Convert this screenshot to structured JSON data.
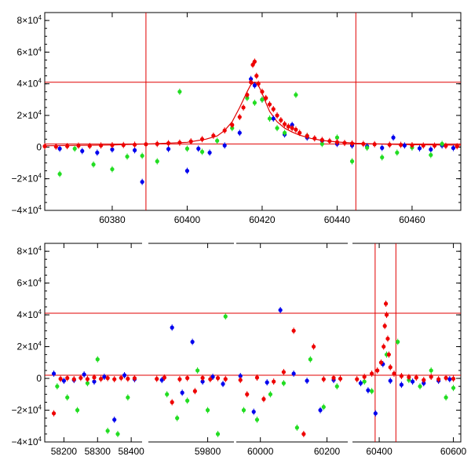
{
  "chart_data": [
    {
      "type": "scatter",
      "title": "",
      "xlabel": "",
      "ylabel": "",
      "xlim": [
        60362,
        60473
      ],
      "ylim": [
        -40000,
        85000
      ],
      "grid": false,
      "x_ticks": [
        60380,
        60400,
        60420,
        60440,
        60460
      ],
      "x_tick_labels": [
        "60380",
        "60400",
        "60420",
        "60440",
        "60460"
      ],
      "y_ticks": [
        -40000,
        -20000,
        0,
        20000,
        40000,
        60000,
        80000
      ],
      "y_tick_labels": [
        {
          "base": "−4×10",
          "exp": "4"
        },
        {
          "base": "−2×10",
          "exp": "4"
        },
        {
          "base": "0",
          "exp": ""
        },
        {
          "base": "2×10",
          "exp": "4"
        },
        {
          "base": "4×10",
          "exp": "4"
        },
        {
          "base": "6×10",
          "exp": "4"
        },
        {
          "base": "8×10",
          "exp": "4"
        }
      ],
      "hlines": [
        41000,
        2000
      ],
      "vlines": [
        60389,
        60445
      ],
      "model_curve": {
        "color": "#e00000",
        "x": [
          60362,
          60380,
          60390,
          60400,
          60405,
          60408,
          60410,
          60412,
          60414,
          60416,
          60417,
          60418,
          60419,
          60420,
          60421,
          60422,
          60424,
          60426,
          60428,
          60430,
          60433,
          60436,
          60440,
          60445,
          60450,
          60460,
          60473
        ],
        "y": [
          800,
          1300,
          2000,
          3000,
          5000,
          7000,
          10500,
          16000,
          25000,
          35000,
          39500,
          41000,
          39000,
          34000,
          28000,
          22500,
          16000,
          12000,
          9500,
          7500,
          5500,
          4200,
          3200,
          2400,
          2000,
          1500,
          1200
        ]
      },
      "series": [
        {
          "color": "#0000ee",
          "x": [
            60366,
            60372,
            60376,
            60380,
            60386,
            60388,
            60395,
            60400,
            60403,
            60406,
            60410,
            60414,
            60417,
            60418,
            60420,
            60423,
            60426,
            60428,
            60432,
            60436,
            60440,
            60444,
            60448,
            60452,
            60455,
            60458,
            60462,
            60465,
            60468,
            60471
          ],
          "y": [
            -1000,
            -2500,
            -3500,
            -1500,
            -2000,
            -22000,
            -1200,
            -15000,
            -1000,
            -3500,
            1000,
            9000,
            43000,
            39000,
            30000,
            18000,
            8000,
            14000,
            6000,
            4000,
            2000,
            1000,
            500,
            -500,
            6000,
            1000,
            -800,
            -1500,
            1000,
            -600
          ]
        },
        {
          "color": "#22dd22",
          "x": [
            60366,
            60370,
            60375,
            60380,
            60384,
            60388,
            60392,
            60398,
            60400,
            60404,
            60408,
            60412,
            60416,
            60418,
            60420,
            60422,
            60424,
            60426,
            60429,
            60432,
            60436,
            60440,
            60444,
            60448,
            60452,
            60456,
            60460,
            60465,
            60468
          ],
          "y": [
            -17000,
            -1000,
            -11000,
            -14000,
            -6000,
            -5500,
            -9000,
            35000,
            -1000,
            -3000,
            4000,
            12000,
            31000,
            28000,
            30000,
            18000,
            12000,
            9000,
            33000,
            7000,
            2000,
            6000,
            -9000,
            -400,
            -6500,
            -3500,
            -300,
            -5000,
            2000
          ]
        },
        {
          "color": "#ee0000",
          "x": [
            60362,
            60365,
            60368,
            60371,
            60374,
            60377,
            60380,
            60383,
            60386,
            60389,
            60392,
            60395,
            60398,
            60401,
            60404,
            60407,
            60410,
            60412,
            60414,
            60415,
            60416,
            60417,
            60417.5,
            60418,
            60418.5,
            60419,
            60420,
            60421,
            60422,
            60423,
            60424,
            60425,
            60426,
            60427,
            60428,
            60429,
            60430,
            60432,
            60434,
            60436,
            60438,
            60440,
            60442,
            60444,
            60447,
            60450,
            60454,
            60457,
            60460,
            60463,
            60466,
            60469,
            60472
          ],
          "y": [
            500,
            300,
            600,
            900,
            700,
            1000,
            1200,
            1300,
            1500,
            1800,
            2000,
            2400,
            2800,
            3600,
            5000,
            7200,
            10500,
            14000,
            19000,
            25000,
            33000,
            41000,
            52000,
            54000,
            45000,
            40000,
            35000,
            31000,
            27000,
            24000,
            20000,
            17000,
            14500,
            13000,
            12000,
            11000,
            9000,
            7000,
            5500,
            4500,
            3800,
            3100,
            2600,
            2300,
            2000,
            1800,
            1500,
            1400,
            1200,
            1000,
            900,
            800,
            500
          ]
        }
      ]
    },
    {
      "type": "scatter",
      "title": "",
      "xlabel": "",
      "ylabel": "",
      "xlim": [
        58150,
        60620
      ],
      "x_breaks": [
        [
          58430,
          59570
        ],
        [
          59900,
          59930
        ],
        [
          60260,
          60330
        ]
      ],
      "ylim": [
        -40000,
        85000
      ],
      "grid": false,
      "x_ticks": [
        58200,
        58300,
        58400,
        59800,
        60000,
        60200,
        60400,
        60600
      ],
      "x_tick_labels": [
        "58200",
        "58300",
        "58400",
        "59800",
        "60000",
        "60200",
        "60400",
        "60600"
      ],
      "y_ticks": [
        -40000,
        -20000,
        0,
        20000,
        40000,
        60000,
        80000
      ],
      "y_tick_labels": [
        {
          "base": "−4×10",
          "exp": "4"
        },
        {
          "base": "−2×10",
          "exp": "4"
        },
        {
          "base": "0",
          "exp": ""
        },
        {
          "base": "2×10",
          "exp": "4"
        },
        {
          "base": "4×10",
          "exp": "4"
        },
        {
          "base": "6×10",
          "exp": "4"
        },
        {
          "base": "8×10",
          "exp": "4"
        }
      ],
      "hlines": [
        41000,
        2000
      ],
      "vlines": [
        60389,
        60445
      ],
      "series": [
        {
          "color": "#0000ee",
          "x": [
            58170,
            58200,
            58230,
            58260,
            58290,
            58320,
            58350,
            58380,
            58410,
            59620,
            59660,
            59700,
            59740,
            59780,
            59820,
            59860,
            59940,
            59980,
            60020,
            60060,
            60100,
            60140,
            60180,
            60220,
            60350,
            60370,
            60390,
            60410,
            60430,
            60460,
            60490,
            60520,
            60560,
            60590
          ],
          "y": [
            3000,
            -1500,
            -1000,
            2500,
            -2000,
            1000,
            -26000,
            2000,
            -500,
            -1000,
            32000,
            -9000,
            23000,
            -2000,
            1000,
            -3500,
            1500,
            -21000,
            -2500,
            43000,
            3000,
            -1500,
            -20000,
            -1000,
            -3000,
            -7500,
            -22000,
            9000,
            -1500,
            -4000,
            -2000,
            -3000,
            -1500,
            -500
          ]
        },
        {
          "color": "#22dd22",
          "x": [
            58180,
            58210,
            58240,
            58270,
            58300,
            58330,
            58360,
            58390,
            59640,
            59680,
            59720,
            59760,
            59800,
            59840,
            59870,
            59950,
            59990,
            60030,
            60070,
            60110,
            60150,
            60190,
            60230,
            60360,
            60380,
            60420,
            60450,
            60480,
            60510,
            60540,
            60580,
            60600
          ],
          "y": [
            -5000,
            -12000,
            -20000,
            -3000,
            12000,
            -33000,
            -35000,
            -12000,
            -10000,
            -25000,
            -14000,
            5000,
            -20000,
            -35000,
            39000,
            -20000,
            -26000,
            -10000,
            -3000,
            -31000,
            12000,
            -18000,
            -5000,
            -2000,
            -8000,
            15000,
            23000,
            -1000,
            -5000,
            5000,
            -12000,
            -6000
          ]
        },
        {
          "color": "#ee0000",
          "x": [
            58170,
            58190,
            58210,
            58230,
            58250,
            58270,
            58290,
            58310,
            58330,
            58350,
            58370,
            58390,
            58410,
            59600,
            59630,
            59660,
            59690,
            59720,
            59750,
            59780,
            59810,
            59840,
            59870,
            59940,
            59960,
            59990,
            60010,
            60040,
            60070,
            60100,
            60130,
            60160,
            60190,
            60220,
            60240,
            60340,
            60360,
            60380,
            60395,
            60405,
            60412,
            60415,
            60418,
            60420,
            60423,
            60426,
            60430,
            60440,
            60460,
            60480,
            60500,
            60520,
            60540,
            60560,
            60580,
            60600
          ],
          "y": [
            -22000,
            -300,
            200,
            -500,
            300,
            -400,
            600,
            -300,
            200,
            -500,
            300,
            -200,
            100,
            -300,
            500,
            -15000,
            -500,
            200,
            -8000,
            300,
            -500,
            200,
            -400,
            -1000,
            -10000,
            500,
            -13000,
            -2000,
            4000,
            30000,
            -35000,
            20000,
            -500,
            300,
            -200,
            -500,
            1000,
            3000,
            5000,
            10000,
            20000,
            33000,
            47000,
            40000,
            25000,
            15000,
            7000,
            3000,
            1500,
            800,
            500,
            -1000,
            1000,
            -500,
            300,
            -200
          ]
        }
      ]
    }
  ]
}
